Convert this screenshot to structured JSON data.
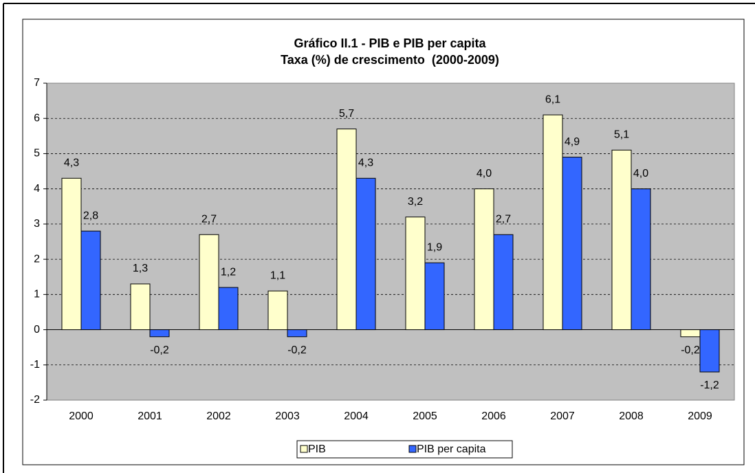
{
  "chart_data": {
    "type": "bar",
    "title": "Gráfico II.1 - PIB e PIB per capita",
    "subtitle": "Taxa (%) de crescimento  (2000-2009)",
    "categories": [
      "2000",
      "2001",
      "2002",
      "2003",
      "2004",
      "2005",
      "2006",
      "2007",
      "2008",
      "2009"
    ],
    "series": [
      {
        "name": "PIB",
        "color": "#ffffcc",
        "values": [
          4.3,
          1.3,
          2.7,
          1.1,
          5.7,
          3.2,
          4.0,
          6.1,
          5.1,
          -0.2
        ],
        "value_labels": [
          "4,3",
          "1,3",
          "2,7",
          "1,1",
          "5,7",
          "3,2",
          "4,0",
          "6,1",
          "5,1",
          "-0,2"
        ]
      },
      {
        "name": "PIB per capita",
        "color": "#3366ff",
        "values": [
          2.8,
          -0.2,
          1.2,
          -0.2,
          4.3,
          1.9,
          2.7,
          4.9,
          4.0,
          -1.2
        ],
        "value_labels": [
          "2,8",
          "-0,2",
          "1,2",
          "-0,2",
          "4,3",
          "1,9",
          "2,7",
          "4,9",
          "4,0",
          "-1,2"
        ]
      }
    ],
    "ylim": [
      -2,
      7
    ],
    "yticks": [
      -2,
      -1,
      0,
      1,
      2,
      3,
      4,
      5,
      6,
      7
    ],
    "grid": true,
    "legend": "bottom"
  }
}
